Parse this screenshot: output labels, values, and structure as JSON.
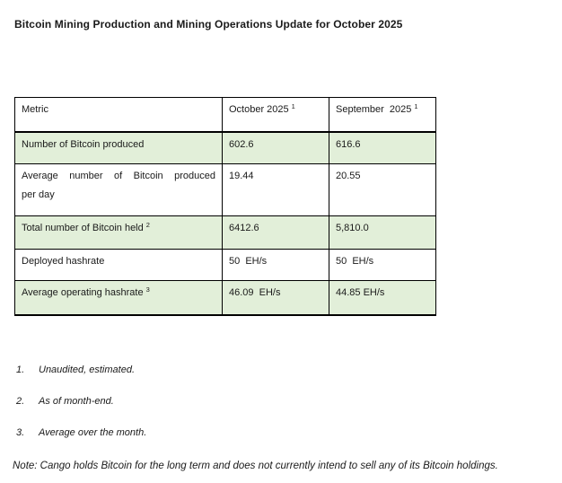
{
  "title": "Bitcoin Mining Production and Mining Operations Update for October 2025",
  "table": {
    "headers": [
      {
        "text": "Metric",
        "sup": ""
      },
      {
        "text": "October 2025",
        "sup": "1"
      },
      {
        "text": "September  2025",
        "sup": "1"
      }
    ],
    "rows": [
      {
        "metric": "Number of Bitcoin produced",
        "sup": "",
        "october": "602.6",
        "september": "616.6"
      },
      {
        "metric": "Average number of Bitcoin produced per day",
        "sup": "",
        "october": "19.44",
        "september": "20.55"
      },
      {
        "metric": "Total number of Bitcoin held",
        "sup": "2",
        "october": "6412.6",
        "september": "5,810.0"
      },
      {
        "metric": "Deployed hashrate",
        "sup": "",
        "october": "50  EH/s",
        "september": "50  EH/s"
      },
      {
        "metric": "Average operating hashrate",
        "sup": "3",
        "october": "46.09  EH/s",
        "september": "44.85 EH/s"
      }
    ]
  },
  "footnotes": [
    {
      "num": "1.",
      "text": "Unaudited, estimated."
    },
    {
      "num": "2.",
      "text": "As of month-end."
    },
    {
      "num": "3.",
      "text": "Average over the month."
    }
  ],
  "note": "Note: Cango holds Bitcoin for the long term and does not currently intend to sell any of its Bitcoin holdings.",
  "colors": {
    "row_shade": "#e2efd9",
    "border": "#000000",
    "text": "#1a1a1a"
  }
}
